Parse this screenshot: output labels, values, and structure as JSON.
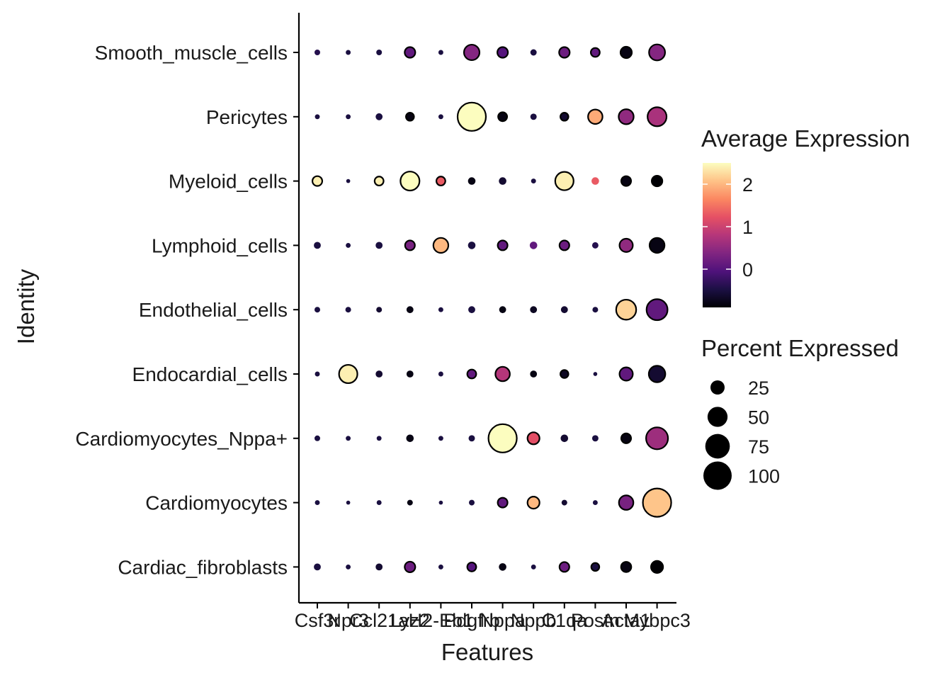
{
  "chart_data": {
    "type": "dot",
    "xlabel": "Features",
    "ylabel": "Identity",
    "features": [
      "Csf3r",
      "Npr3",
      "Ccl21a",
      "Lyz2",
      "H2-Eb1",
      "Pdgfrb",
      "Nppa",
      "Nppb",
      "C1qa",
      "Postn",
      "Acta1",
      "Mybpc3"
    ],
    "identities": [
      "Smooth_muscle_cells",
      "Pericytes",
      "Myeloid_cells",
      "Lymphoid_cells",
      "Endothelial_cells",
      "Endocardial_cells",
      "Cardiomyocytes_Nppa+",
      "Cardiomyocytes",
      "Cardiac_fibroblasts"
    ],
    "percent_expressed": [
      [
        4,
        3,
        4,
        14,
        3,
        30,
        14,
        5,
        14,
        10,
        16,
        32
      ],
      [
        3,
        3,
        6,
        8,
        3,
        100,
        10,
        5,
        8,
        26,
        28,
        45
      ],
      [
        12,
        2,
        10,
        45,
        10,
        7,
        7,
        3,
        42,
        7,
        12,
        14
      ],
      [
        6,
        3,
        6,
        12,
        28,
        7,
        12,
        7,
        12,
        5,
        22,
        28
      ],
      [
        4,
        4,
        4,
        6,
        3,
        6,
        6,
        6,
        6,
        4,
        50,
        55
      ],
      [
        3,
        42,
        6,
        6,
        3,
        10,
        26,
        6,
        8,
        2,
        22,
        34
      ],
      [
        4,
        3,
        3,
        7,
        3,
        5,
        100,
        18,
        7,
        5,
        12,
        60
      ],
      [
        3,
        2,
        3,
        4,
        2,
        4,
        12,
        18,
        4,
        3,
        26,
        100
      ],
      [
        6,
        3,
        6,
        14,
        3,
        10,
        7,
        3,
        12,
        8,
        13,
        18
      ]
    ],
    "average_expression": [
      [
        -0.4,
        -0.5,
        -0.5,
        0.1,
        -0.5,
        0.4,
        0.0,
        -0.5,
        0.2,
        0.1,
        -0.8,
        0.4
      ],
      [
        -0.5,
        -0.5,
        -0.5,
        -0.8,
        -0.5,
        2.5,
        -0.8,
        -0.5,
        -0.6,
        1.9,
        0.5,
        0.7
      ],
      [
        2.4,
        -0.5,
        2.4,
        2.5,
        1.3,
        -0.8,
        -0.6,
        -0.5,
        2.4,
        1.3,
        -0.8,
        -0.9
      ],
      [
        -0.5,
        -0.5,
        -0.5,
        0.3,
        2.0,
        -0.5,
        0.1,
        0.1,
        0.2,
        -0.4,
        0.5,
        -0.8
      ],
      [
        -0.5,
        -0.5,
        -0.6,
        -0.8,
        -0.5,
        -0.5,
        -0.8,
        -0.7,
        -0.6,
        -0.5,
        2.2,
        0.1
      ],
      [
        -0.5,
        2.4,
        -0.6,
        -0.8,
        -0.5,
        0.1,
        0.8,
        -0.8,
        -0.7,
        -0.5,
        0.1,
        -0.6
      ],
      [
        -0.5,
        -0.5,
        -0.5,
        -0.8,
        -0.5,
        -0.5,
        2.5,
        1.2,
        -0.6,
        -0.5,
        -0.8,
        0.6
      ],
      [
        -0.5,
        -0.5,
        -0.5,
        -0.8,
        -0.5,
        -0.5,
        0.1,
        2.0,
        -0.6,
        -0.5,
        0.3,
        2.1
      ],
      [
        -0.5,
        -0.5,
        -0.6,
        0.2,
        -0.5,
        0.0,
        -0.8,
        -0.5,
        0.2,
        -0.5,
        -0.8,
        -0.9
      ]
    ],
    "color_legend": {
      "title": "Average Expression",
      "ticks": [
        2,
        1,
        0
      ],
      "tick_labels": [
        "2",
        "1",
        "0"
      ],
      "min": -0.9,
      "max": 2.5,
      "palette": [
        "#000004",
        "#1c1044",
        "#4f127b",
        "#812581",
        "#b5367a",
        "#e55064",
        "#fb8761",
        "#fec287",
        "#fcfdbf"
      ]
    },
    "size_legend": {
      "title": "Percent Expressed",
      "values": [
        25,
        50,
        75,
        100
      ],
      "labels": [
        "25",
        "50",
        "75",
        "100"
      ]
    },
    "legend_placement": "right",
    "grid": false
  }
}
